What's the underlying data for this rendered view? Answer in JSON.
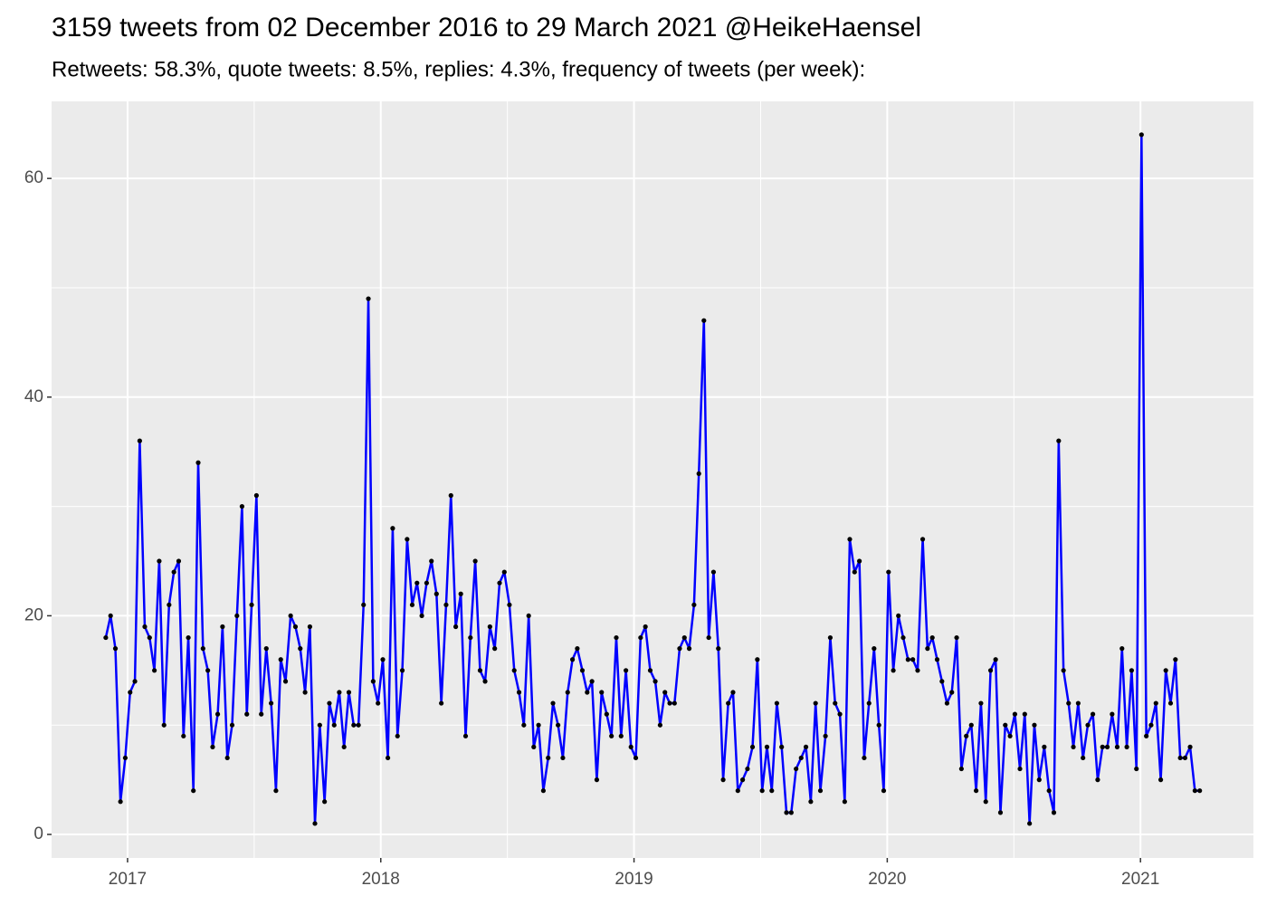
{
  "chart_data": {
    "type": "line",
    "title": "3159 tweets from 02 December 2016 to 29 March 2021 @HeikeHaensel",
    "subtitle": "Retweets: 58.3%, quote tweets: 8.5%, replies: 4.3%, frequency of tweets (per week):",
    "x": [
      2016.914,
      2016.933,
      2016.952,
      2016.972,
      2016.991,
      2017.01,
      2017.029,
      2017.048,
      2017.068,
      2017.087,
      2017.106,
      2017.125,
      2017.144,
      2017.164,
      2017.183,
      2017.202,
      2017.221,
      2017.24,
      2017.26,
      2017.279,
      2017.298,
      2017.317,
      2017.336,
      2017.356,
      2017.375,
      2017.394,
      2017.413,
      2017.432,
      2017.452,
      2017.471,
      2017.49,
      2017.509,
      2017.528,
      2017.548,
      2017.567,
      2017.586,
      2017.605,
      2017.624,
      2017.644,
      2017.663,
      2017.682,
      2017.701,
      2017.72,
      2017.74,
      2017.759,
      2017.778,
      2017.797,
      2017.816,
      2017.836,
      2017.855,
      2017.874,
      2017.893,
      2017.912,
      2017.932,
      2017.951,
      2017.97,
      2017.989,
      2018.008,
      2018.028,
      2018.047,
      2018.066,
      2018.085,
      2018.104,
      2018.124,
      2018.143,
      2018.162,
      2018.181,
      2018.2,
      2018.22,
      2018.239,
      2018.258,
      2018.277,
      2018.296,
      2018.316,
      2018.335,
      2018.354,
      2018.373,
      2018.392,
      2018.412,
      2018.431,
      2018.45,
      2018.469,
      2018.488,
      2018.508,
      2018.527,
      2018.546,
      2018.565,
      2018.584,
      2018.604,
      2018.623,
      2018.642,
      2018.661,
      2018.68,
      2018.7,
      2018.719,
      2018.738,
      2018.757,
      2018.776,
      2018.796,
      2018.815,
      2018.834,
      2018.853,
      2018.872,
      2018.892,
      2018.911,
      2018.93,
      2018.949,
      2018.968,
      2018.988,
      2019.007,
      2019.026,
      2019.045,
      2019.064,
      2019.084,
      2019.103,
      2019.122,
      2019.141,
      2019.16,
      2019.18,
      2019.199,
      2019.218,
      2019.237,
      2019.256,
      2019.276,
      2019.295,
      2019.314,
      2019.333,
      2019.352,
      2019.372,
      2019.391,
      2019.41,
      2019.429,
      2019.448,
      2019.468,
      2019.487,
      2019.506,
      2019.525,
      2019.544,
      2019.564,
      2019.583,
      2019.602,
      2019.621,
      2019.64,
      2019.66,
      2019.679,
      2019.698,
      2019.717,
      2019.736,
      2019.756,
      2019.775,
      2019.794,
      2019.813,
      2019.832,
      2019.852,
      2019.871,
      2019.89,
      2019.909,
      2019.928,
      2019.948,
      2019.967,
      2019.986,
      2020.005,
      2020.024,
      2020.044,
      2020.063,
      2020.082,
      2020.101,
      2020.12,
      2020.14,
      2020.159,
      2020.178,
      2020.197,
      2020.216,
      2020.236,
      2020.255,
      2020.274,
      2020.293,
      2020.312,
      2020.332,
      2020.351,
      2020.37,
      2020.389,
      2020.408,
      2020.428,
      2020.447,
      2020.466,
      2020.485,
      2020.504,
      2020.524,
      2020.543,
      2020.562,
      2020.581,
      2020.6,
      2020.62,
      2020.639,
      2020.658,
      2020.677,
      2020.696,
      2020.716,
      2020.735,
      2020.754,
      2020.773,
      2020.792,
      2020.812,
      2020.831,
      2020.85,
      2020.869,
      2020.888,
      2020.908,
      2020.927,
      2020.946,
      2020.965,
      2020.984,
      2021.004,
      2021.023,
      2021.042,
      2021.061,
      2021.08,
      2021.1,
      2021.119,
      2021.138,
      2021.157,
      2021.176,
      2021.196,
      2021.215,
      2021.234
    ],
    "values": [
      18,
      20,
      17,
      3,
      7,
      13,
      14,
      36,
      19,
      18,
      15,
      25,
      10,
      21,
      24,
      25,
      9,
      18,
      4,
      34,
      17,
      15,
      8,
      11,
      19,
      7,
      10,
      20,
      30,
      11,
      21,
      31,
      11,
      17,
      12,
      4,
      16,
      14,
      20,
      19,
      17,
      13,
      19,
      1,
      10,
      3,
      12,
      10,
      13,
      8,
      13,
      10,
      10,
      21,
      49,
      14,
      12,
      16,
      7,
      28,
      9,
      15,
      27,
      21,
      23,
      20,
      23,
      25,
      22,
      12,
      21,
      31,
      19,
      22,
      9,
      18,
      25,
      15,
      14,
      19,
      17,
      23,
      24,
      21,
      15,
      13,
      10,
      20,
      8,
      10,
      4,
      7,
      12,
      10,
      7,
      13,
      16,
      17,
      15,
      13,
      14,
      5,
      13,
      11,
      9,
      18,
      9,
      15,
      8,
      7,
      18,
      19,
      15,
      14,
      10,
      13,
      12,
      12,
      17,
      18,
      17,
      21,
      33,
      47,
      18,
      24,
      17,
      5,
      12,
      13,
      4,
      5,
      6,
      8,
      16,
      4,
      8,
      4,
      12,
      8,
      2,
      2,
      6,
      7,
      8,
      3,
      12,
      4,
      9,
      18,
      12,
      11,
      3,
      27,
      24,
      25,
      7,
      12,
      17,
      10,
      4,
      24,
      15,
      20,
      18,
      16,
      16,
      15,
      27,
      17,
      18,
      16,
      14,
      12,
      13,
      18,
      6,
      9,
      10,
      4,
      12,
      3,
      15,
      16,
      2,
      10,
      9,
      11,
      6,
      11,
      1,
      10,
      5,
      8,
      4,
      2,
      36,
      15,
      12,
      8,
      12,
      7,
      10,
      11,
      5,
      8,
      8,
      11,
      8,
      17,
      8,
      15,
      6,
      64,
      9,
      10,
      12,
      5,
      15,
      12,
      16,
      7,
      7,
      8,
      4,
      4
    ],
    "color": "#0000ff",
    "marker_color": "#000000",
    "xlim": [
      2016.7,
      2021.446
    ],
    "xticks": [
      2017,
      2018,
      2019,
      2020,
      2021
    ],
    "ylim": [
      -2.15,
      67.05
    ],
    "yticks": [
      0,
      20,
      40,
      60
    ],
    "grid": true
  }
}
